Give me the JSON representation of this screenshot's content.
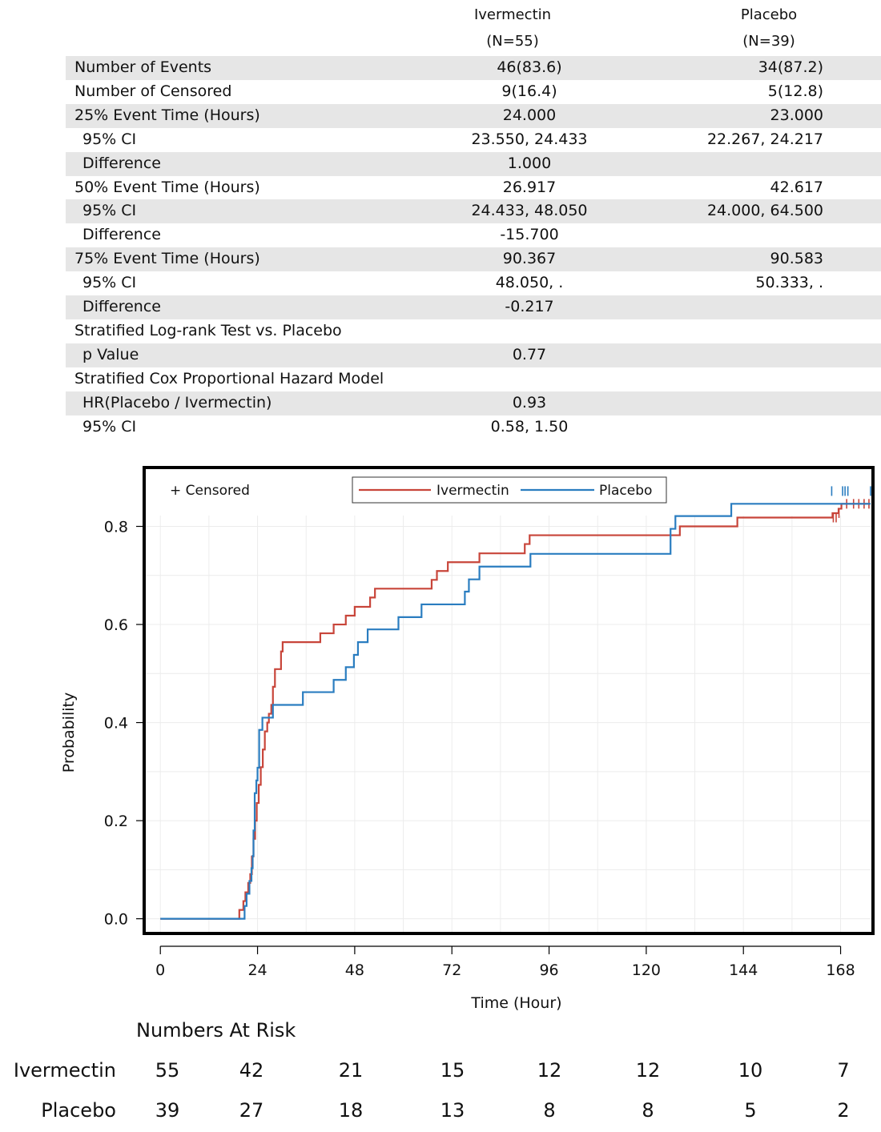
{
  "header": {
    "col1_name": "Ivermectin",
    "col1_n": "(N=55)",
    "col2_name": "Placebo",
    "col2_n": "(N=39)"
  },
  "rows": [
    {
      "label": "Number of Events",
      "v1": "46(83.6)",
      "v2": "34(87.2)",
      "indent": false
    },
    {
      "label": "Number of Censored",
      "v1": "9(16.4)",
      "v2": "5(12.8)",
      "indent": false
    },
    {
      "label": "25% Event Time (Hours)",
      "v1": "24.000",
      "v2": "23.000",
      "indent": false
    },
    {
      "label": "95% CI",
      "v1": "23.550, 24.433",
      "v2": "22.267, 24.217",
      "indent": true
    },
    {
      "label": "Difference",
      "v1": "1.000",
      "v2": "",
      "indent": true
    },
    {
      "label": "50% Event Time (Hours)",
      "v1": "26.917",
      "v2": "42.617",
      "indent": false
    },
    {
      "label": "95% CI",
      "v1": "24.433, 48.050",
      "v2": "24.000, 64.500",
      "indent": true
    },
    {
      "label": "Difference",
      "v1": "-15.700",
      "v2": "",
      "indent": true
    },
    {
      "label": "75% Event Time (Hours)",
      "v1": "90.367",
      "v2": "90.583",
      "indent": false
    },
    {
      "label": "95% CI",
      "v1": "48.050, .",
      "v2": "50.333, .",
      "indent": true
    },
    {
      "label": "Difference",
      "v1": "-0.217",
      "v2": "",
      "indent": true
    },
    {
      "label": "Stratified Log-rank Test vs. Placebo",
      "v1": "",
      "v2": "",
      "indent": false
    },
    {
      "label": "p Value",
      "v1": "0.77",
      "v2": "",
      "indent": true
    },
    {
      "label": "Stratified Cox Proportional Hazard Model",
      "v1": "",
      "v2": "",
      "indent": false
    },
    {
      "label": "HR(Placebo / Ivermectin)",
      "v1": "0.93",
      "v2": "",
      "indent": true
    },
    {
      "label": "95% CI",
      "v1": "0.58, 1.50",
      "v2": "",
      "indent": true
    }
  ],
  "chart_data": {
    "type": "line",
    "step": true,
    "xlabel": "Time (Hour)",
    "ylabel": "Probability",
    "xlim": [
      -4,
      176
    ],
    "ylim": [
      -0.03,
      0.92
    ],
    "xticks": [
      0,
      24,
      48,
      72,
      96,
      120,
      144,
      168
    ],
    "yticks": [
      0.0,
      0.2,
      0.4,
      0.6,
      0.8
    ],
    "ytick_labels": [
      "0.0",
      "0.2",
      "0.4",
      "0.6",
      "0.8"
    ],
    "grid": true,
    "legend_position": "top-center",
    "censored_label": "+ Censored",
    "series": [
      {
        "name": "Ivermectin",
        "color": "#c8453a",
        "x": [
          0,
          19.5,
          20.5,
          21.0,
          21.7,
          22.2,
          22.6,
          23.0,
          23.4,
          23.8,
          24.3,
          24.8,
          25.3,
          25.8,
          26.4,
          26.8,
          27.4,
          27.8,
          28.3,
          29.8,
          30.2,
          39.5,
          42.8,
          45.8,
          48.0,
          51.8,
          53.0,
          67.0,
          68.3,
          71.0,
          78.8,
          90.0,
          91.2,
          128.3,
          142.5,
          166.0,
          167.5,
          168.2
        ],
        "y": [
          0,
          0.018,
          0.036,
          0.054,
          0.073,
          0.091,
          0.127,
          0.163,
          0.2,
          0.236,
          0.273,
          0.309,
          0.345,
          0.382,
          0.4,
          0.418,
          0.436,
          0.473,
          0.509,
          0.545,
          0.564,
          0.582,
          0.6,
          0.618,
          0.636,
          0.655,
          0.673,
          0.691,
          0.709,
          0.727,
          0.745,
          0.764,
          0.782,
          0.8,
          0.818,
          0.827,
          0.836,
          0.846
        ],
        "censor_x": [
          166.2,
          166.9,
          167.6,
          169.5,
          171.2,
          172.5,
          173.8,
          175.0
        ],
        "censor_y": [
          0.818,
          0.818,
          0.827,
          0.846,
          0.846,
          0.846,
          0.846,
          0.846
        ]
      },
      {
        "name": "Placebo",
        "color": "#2a7dc0",
        "x": [
          0,
          20.8,
          21.3,
          22.0,
          22.5,
          22.8,
          23.0,
          23.3,
          23.7,
          24.0,
          24.4,
          25.2,
          27.8,
          35.2,
          42.8,
          45.8,
          47.8,
          48.8,
          51.2,
          58.8,
          64.5,
          75.2,
          76.2,
          78.8,
          91.4,
          126.0,
          127.2,
          141.0
        ],
        "y": [
          0,
          0.026,
          0.051,
          0.077,
          0.103,
          0.128,
          0.18,
          0.256,
          0.282,
          0.308,
          0.385,
          0.41,
          0.436,
          0.462,
          0.487,
          0.513,
          0.538,
          0.564,
          0.59,
          0.615,
          0.641,
          0.667,
          0.692,
          0.718,
          0.744,
          0.795,
          0.821,
          0.846
        ],
        "censor_x": [
          165.8,
          168.5,
          169.1,
          169.8,
          175.4
        ],
        "censor_y": [
          0.872,
          0.872,
          0.872,
          0.872,
          0.872
        ],
        "final_y": 0.872
      }
    ]
  },
  "risk": {
    "title": "Numbers At Risk",
    "groups": [
      {
        "name": "Ivermectin",
        "values": [
          "55",
          "42",
          "21",
          "15",
          "12",
          "12",
          "10",
          "7"
        ]
      },
      {
        "name": "Placebo",
        "values": [
          "39",
          "27",
          "18",
          "13",
          "8",
          "8",
          "5",
          "2"
        ]
      }
    ]
  }
}
